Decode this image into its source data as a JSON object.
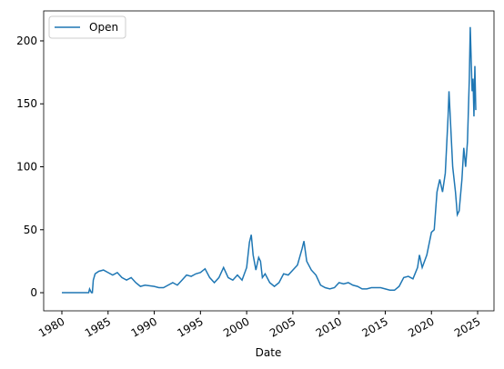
{
  "chart_data": {
    "type": "line",
    "xlabel": "Date",
    "x": [
      1980.0,
      1982.9,
      1983.0,
      1983.2,
      1983.3,
      1983.4,
      1983.6,
      1984.0,
      1984.5,
      1985.0,
      1985.5,
      1986.0,
      1986.5,
      1987.0,
      1987.5,
      1988.0,
      1988.5,
      1989.0,
      1990.0,
      1990.5,
      1991.0,
      1991.5,
      1992.0,
      1992.5,
      1993.0,
      1993.5,
      1994.0,
      1994.5,
      1995.0,
      1995.5,
      1996.0,
      1996.5,
      1997.0,
      1997.5,
      1998.0,
      1998.5,
      1999.0,
      1999.5,
      2000.0,
      2000.3,
      2000.5,
      2000.7,
      2001.0,
      2001.3,
      2001.5,
      2001.7,
      2002.0,
      2002.5,
      2003.0,
      2003.5,
      2004.0,
      2004.5,
      2005.0,
      2005.5,
      2006.0,
      2006.2,
      2006.5,
      2007.0,
      2007.5,
      2008.0,
      2008.5,
      2009.0,
      2009.5,
      2010.0,
      2010.5,
      2011.0,
      2011.5,
      2012.0,
      2012.5,
      2013.0,
      2013.5,
      2014.0,
      2014.5,
      2015.0,
      2015.5,
      2016.0,
      2016.5,
      2017.0,
      2017.5,
      2018.0,
      2018.5,
      2018.7,
      2019.0,
      2019.5,
      2020.0,
      2020.3,
      2020.6,
      2020.9,
      2021.2,
      2021.5,
      2021.8,
      2021.9,
      2022.0,
      2022.3,
      2022.6,
      2022.8,
      2023.0,
      2023.3,
      2023.5,
      2023.7,
      2023.9,
      2024.1,
      2024.2,
      2024.4,
      2024.5,
      2024.6,
      2024.7,
      2024.8
    ],
    "series": [
      {
        "name": "Open",
        "color": "#1f77b4",
        "values": [
          0,
          0,
          3,
          0,
          0,
          10,
          15,
          17,
          18,
          16,
          14,
          16,
          12,
          10,
          12,
          8,
          5,
          6,
          5,
          4,
          4,
          6,
          8,
          6,
          10,
          14,
          13,
          15,
          16,
          19,
          12,
          8,
          12,
          20,
          12,
          10,
          14,
          10,
          20,
          40,
          46,
          30,
          18,
          28,
          25,
          12,
          15,
          8,
          5,
          8,
          15,
          14,
          18,
          22,
          35,
          41,
          25,
          18,
          14,
          6,
          4,
          3,
          4,
          8,
          7,
          8,
          6,
          5,
          3,
          3,
          4,
          4,
          4,
          3,
          2,
          2,
          5,
          12,
          13,
          11,
          20,
          30,
          20,
          30,
          48,
          50,
          80,
          90,
          80,
          95,
          140,
          160,
          145,
          100,
          80,
          62,
          65,
          90,
          115,
          100,
          120,
          170,
          211,
          160,
          170,
          140,
          180,
          145
        ]
      }
    ],
    "xlim": [
      1978.03,
      2026.77
    ],
    "xticks": [
      1980,
      1985,
      1990,
      1995,
      2000,
      2005,
      2010,
      2015,
      2020,
      2025
    ],
    "ylim": [
      -14.4,
      223.8
    ],
    "yticks": [
      0,
      50,
      100,
      150,
      200
    ],
    "legend": "upper left"
  }
}
